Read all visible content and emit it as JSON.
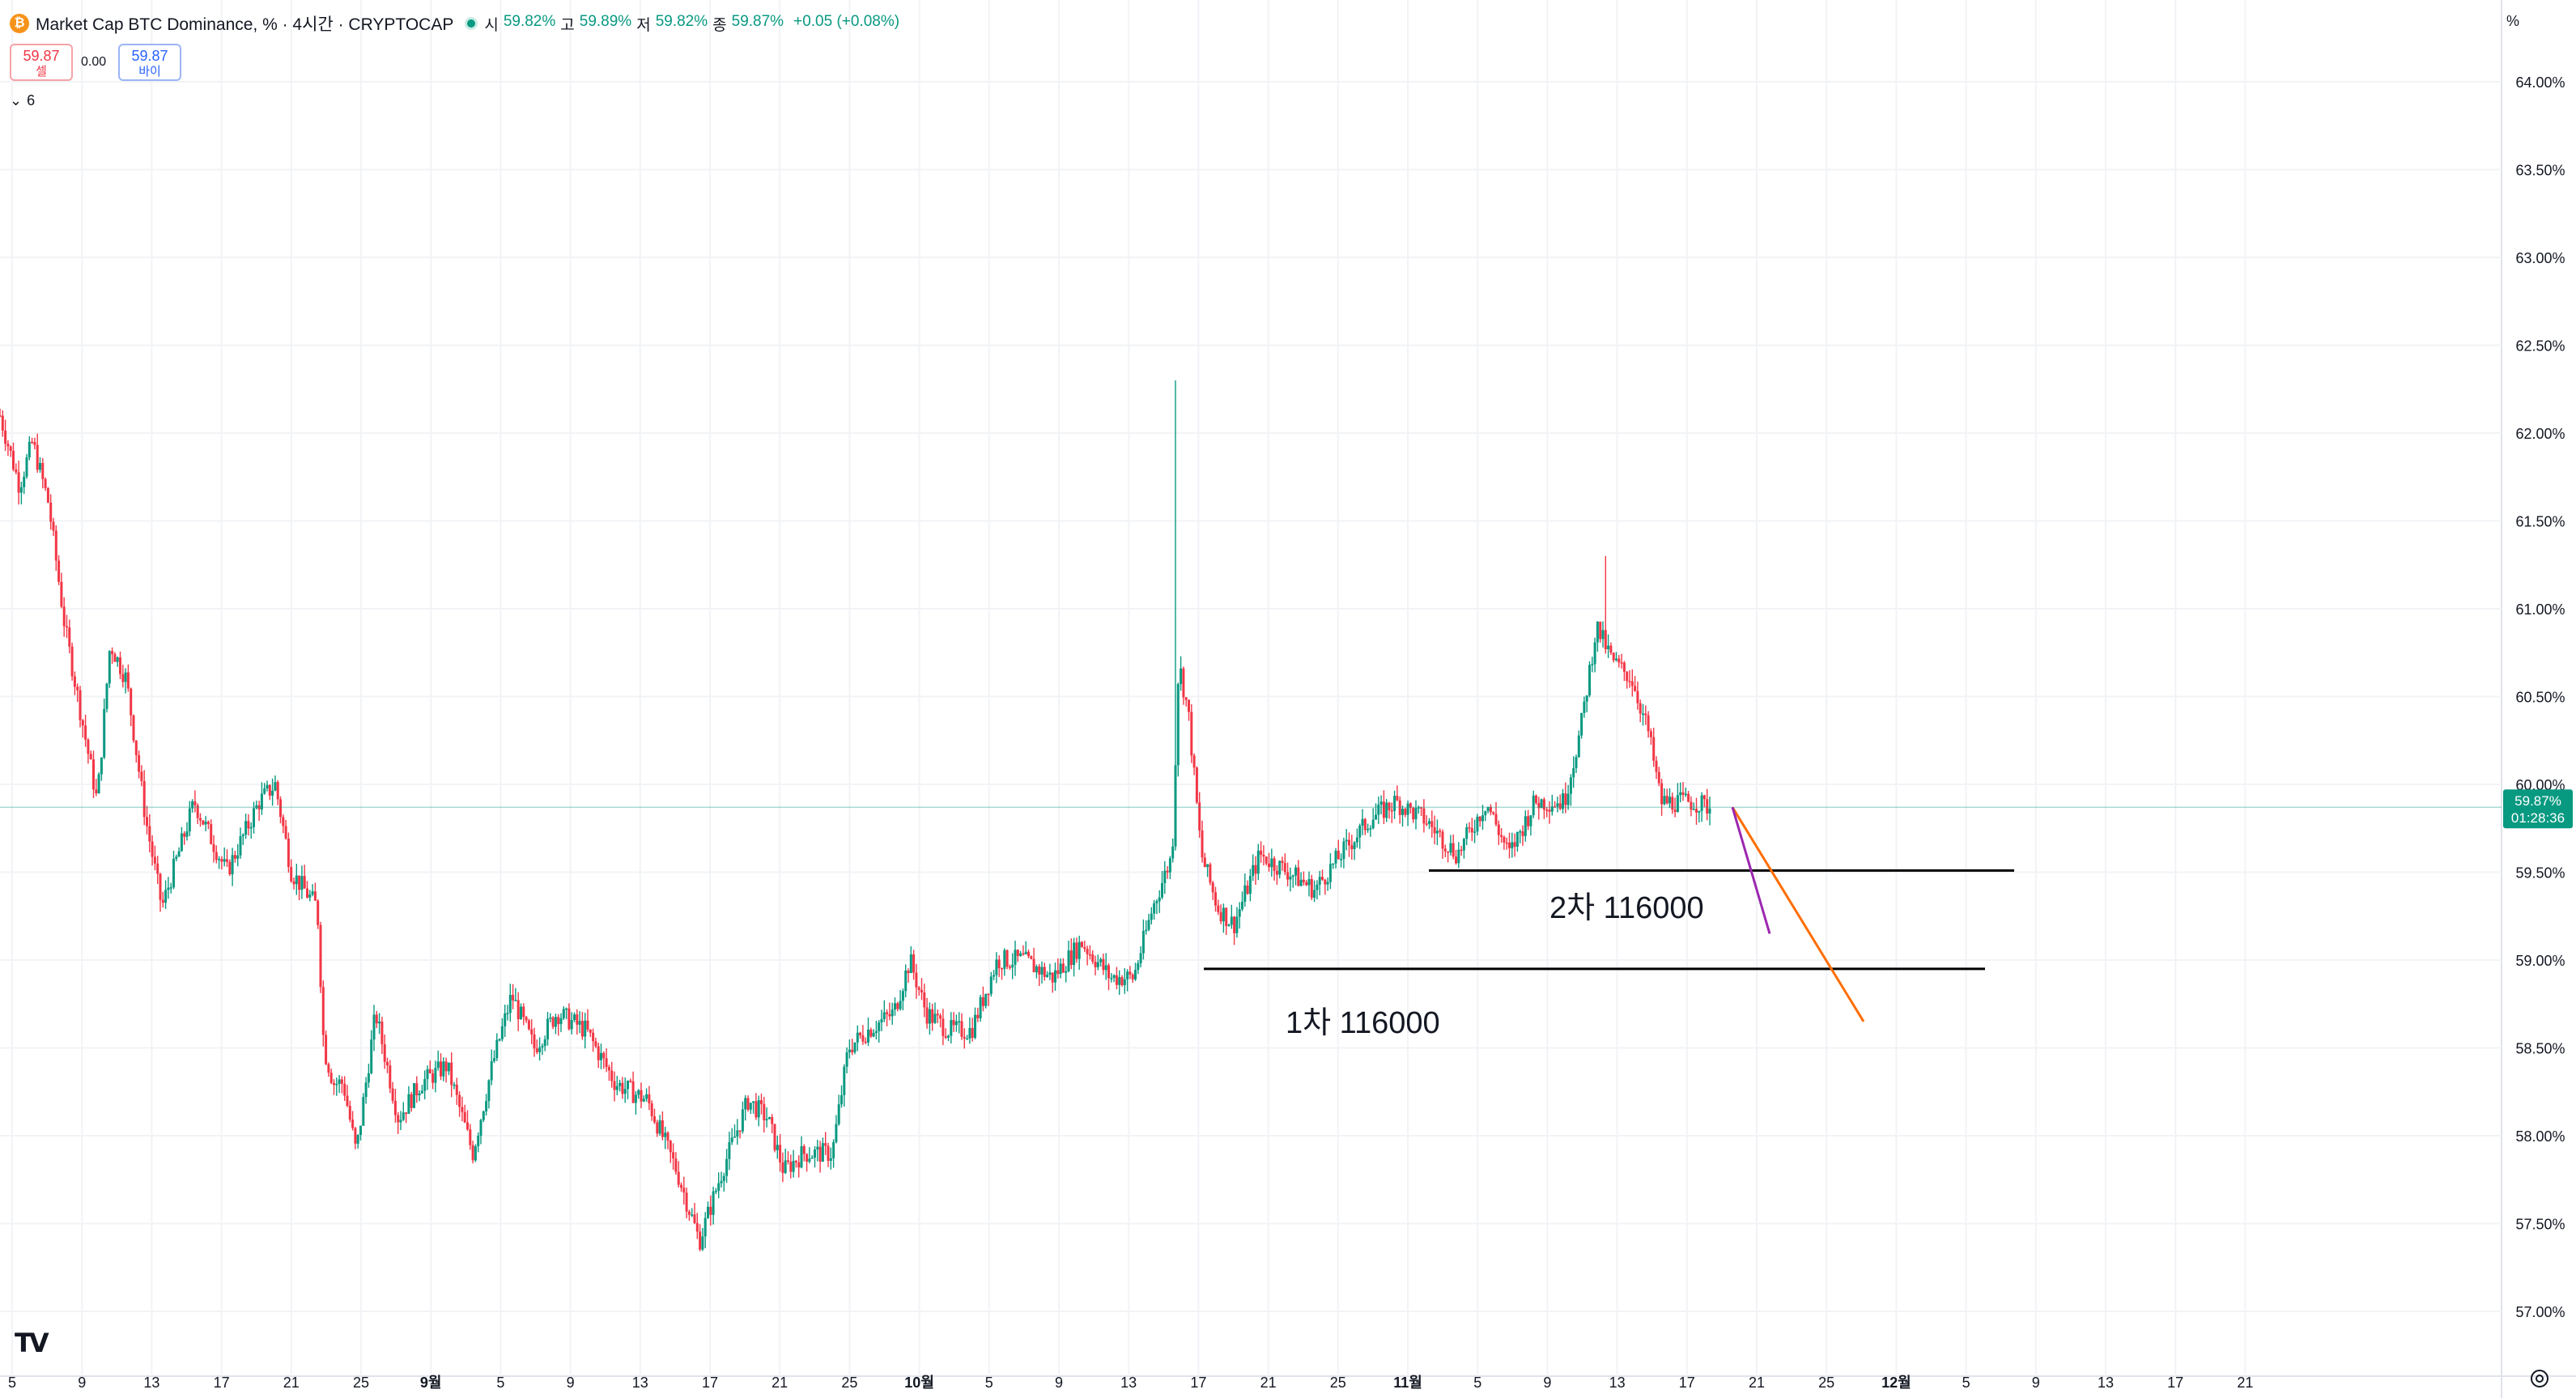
{
  "header": {
    "logo_glyph": "₿",
    "title": "Market Cap BTC Dominance, % · 4시간 · CRYPTOCAP",
    "ohlc": [
      {
        "label": "시",
        "value": "59.82%"
      },
      {
        "label": "고",
        "value": "59.89%"
      },
      {
        "label": "저",
        "value": "59.82%"
      },
      {
        "label": "종",
        "value": "59.87%"
      }
    ],
    "change": "+0.05 (+0.08%)"
  },
  "trade": {
    "sell_price": "59.87",
    "sell_label": "셀",
    "spread": "0.00",
    "buy_price": "59.87",
    "buy_label": "바이",
    "indicator_count": "6"
  },
  "price_scale": {
    "unit": "%",
    "last_price": "59.87%",
    "countdown": "01:28:36"
  },
  "annotations": {
    "first_level": "1차 116000",
    "second_level": "2차 116000"
  },
  "colors": {
    "up": "#089981",
    "down": "#f23645",
    "trendline_orange": "#ff6d00",
    "trendline_purple": "#9c27b0"
  },
  "chart_data": {
    "type": "candlestick",
    "title": "Market Cap BTC Dominance, %",
    "timeframe": "4시간",
    "ylim": [
      56.8,
      64.2
    ],
    "y_ticks": [
      57.0,
      57.5,
      58.0,
      58.5,
      59.0,
      59.5,
      60.0,
      60.5,
      61.0,
      61.5,
      62.0,
      62.5,
      63.0,
      63.5,
      64.0
    ],
    "y_tick_labels": [
      "57.00%",
      "57.50%",
      "58.00%",
      "58.50%",
      "59.00%",
      "59.50%",
      "60.00%",
      "60.50%",
      "61.00%",
      "61.50%",
      "62.00%",
      "62.50%",
      "63.00%",
      "63.50%",
      "64.00%"
    ],
    "x_tick_labels": [
      "5",
      "9",
      "13",
      "17",
      "21",
      "25",
      "9월",
      "5",
      "9",
      "13",
      "17",
      "21",
      "25",
      "10월",
      "5",
      "9",
      "13",
      "17",
      "21",
      "25",
      "11월",
      "5",
      "9",
      "13",
      "17",
      "21",
      "25",
      "12월",
      "5",
      "9",
      "13",
      "17",
      "21"
    ],
    "price_path": [
      [
        0,
        62.1
      ],
      [
        12,
        61.7
      ],
      [
        20,
        61.95
      ],
      [
        30,
        61.6
      ],
      [
        40,
        60.9
      ],
      [
        50,
        60.4
      ],
      [
        60,
        59.9
      ],
      [
        68,
        60.8
      ],
      [
        78,
        60.6
      ],
      [
        90,
        59.8
      ],
      [
        100,
        59.3
      ],
      [
        110,
        59.6
      ],
      [
        120,
        59.9
      ],
      [
        140,
        59.5
      ],
      [
        160,
        59.9
      ],
      [
        170,
        60.0
      ],
      [
        180,
        59.5
      ],
      [
        196,
        59.3
      ],
      [
        200,
        58.5
      ],
      [
        206,
        58.3
      ],
      [
        212,
        58.3
      ],
      [
        220,
        57.9
      ],
      [
        232,
        58.7
      ],
      [
        246,
        58.1
      ],
      [
        260,
        58.3
      ],
      [
        276,
        58.4
      ],
      [
        292,
        57.9
      ],
      [
        304,
        58.4
      ],
      [
        316,
        58.8
      ],
      [
        330,
        58.5
      ],
      [
        344,
        58.7
      ],
      [
        362,
        58.6
      ],
      [
        380,
        58.3
      ],
      [
        400,
        58.2
      ],
      [
        418,
        57.8
      ],
      [
        432,
        57.4
      ],
      [
        446,
        57.8
      ],
      [
        462,
        58.2
      ],
      [
        474,
        58.1
      ],
      [
        484,
        57.8
      ],
      [
        496,
        57.9
      ],
      [
        514,
        57.9
      ],
      [
        524,
        58.5
      ],
      [
        536,
        58.6
      ],
      [
        552,
        58.7
      ],
      [
        562,
        59.0
      ],
      [
        572,
        58.7
      ],
      [
        586,
        58.6
      ],
      [
        600,
        58.6
      ],
      [
        616,
        59.0
      ],
      [
        632,
        59.0
      ],
      [
        650,
        58.9
      ],
      [
        668,
        59.1
      ],
      [
        686,
        58.9
      ],
      [
        700,
        58.9
      ],
      [
        712,
        59.3
      ],
      [
        724,
        59.6
      ],
      [
        728,
        60.7
      ],
      [
        734,
        60.4
      ],
      [
        742,
        59.6
      ],
      [
        752,
        59.3
      ],
      [
        762,
        59.2
      ],
      [
        778,
        59.6
      ],
      [
        796,
        59.5
      ],
      [
        812,
        59.4
      ],
      [
        828,
        59.6
      ],
      [
        846,
        59.8
      ],
      [
        862,
        59.9
      ],
      [
        880,
        59.8
      ],
      [
        900,
        59.6
      ],
      [
        918,
        59.9
      ],
      [
        932,
        59.6
      ],
      [
        948,
        59.9
      ],
      [
        966,
        59.9
      ],
      [
        976,
        60.3
      ],
      [
        986,
        60.9
      ],
      [
        996,
        60.7
      ],
      [
        1008,
        60.6
      ],
      [
        1018,
        60.3
      ],
      [
        1026,
        59.9
      ],
      [
        1036,
        59.9
      ],
      [
        1046,
        59.9
      ],
      [
        1056,
        59.87
      ]
    ],
    "wick_highs": [
      [
        726,
        62.3
      ],
      [
        992,
        61.3
      ]
    ],
    "horizontal_lines": [
      {
        "label": "1차 116000",
        "y": 58.95
      },
      {
        "label": "2차 116000",
        "y": 59.51
      }
    ],
    "trendlines": [
      {
        "color": "orange",
        "from": 59.87,
        "to": 58.65
      },
      {
        "color": "purple",
        "from": 59.87,
        "to": 59.15
      }
    ],
    "last_price": 59.87,
    "grid": true,
    "legend": "top-left"
  }
}
